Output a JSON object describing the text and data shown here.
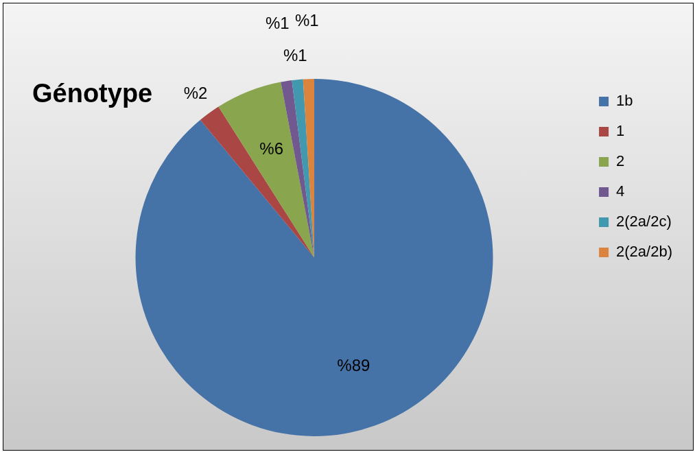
{
  "chart_data": {
    "type": "pie",
    "title": "Génotype",
    "categories": [
      "1b",
      "1",
      "2",
      "4",
      "2(2a/2c)",
      "2(2a/2b)"
    ],
    "values": [
      89,
      2,
      6,
      1,
      1,
      1
    ],
    "value_labels": [
      "%89",
      "%2",
      "%6",
      "%1",
      "%1",
      "%1"
    ],
    "colors": [
      "#4572a7",
      "#aa4643",
      "#89a54e",
      "#71588f",
      "#4198af",
      "#db843d"
    ],
    "legend": "top right"
  }
}
